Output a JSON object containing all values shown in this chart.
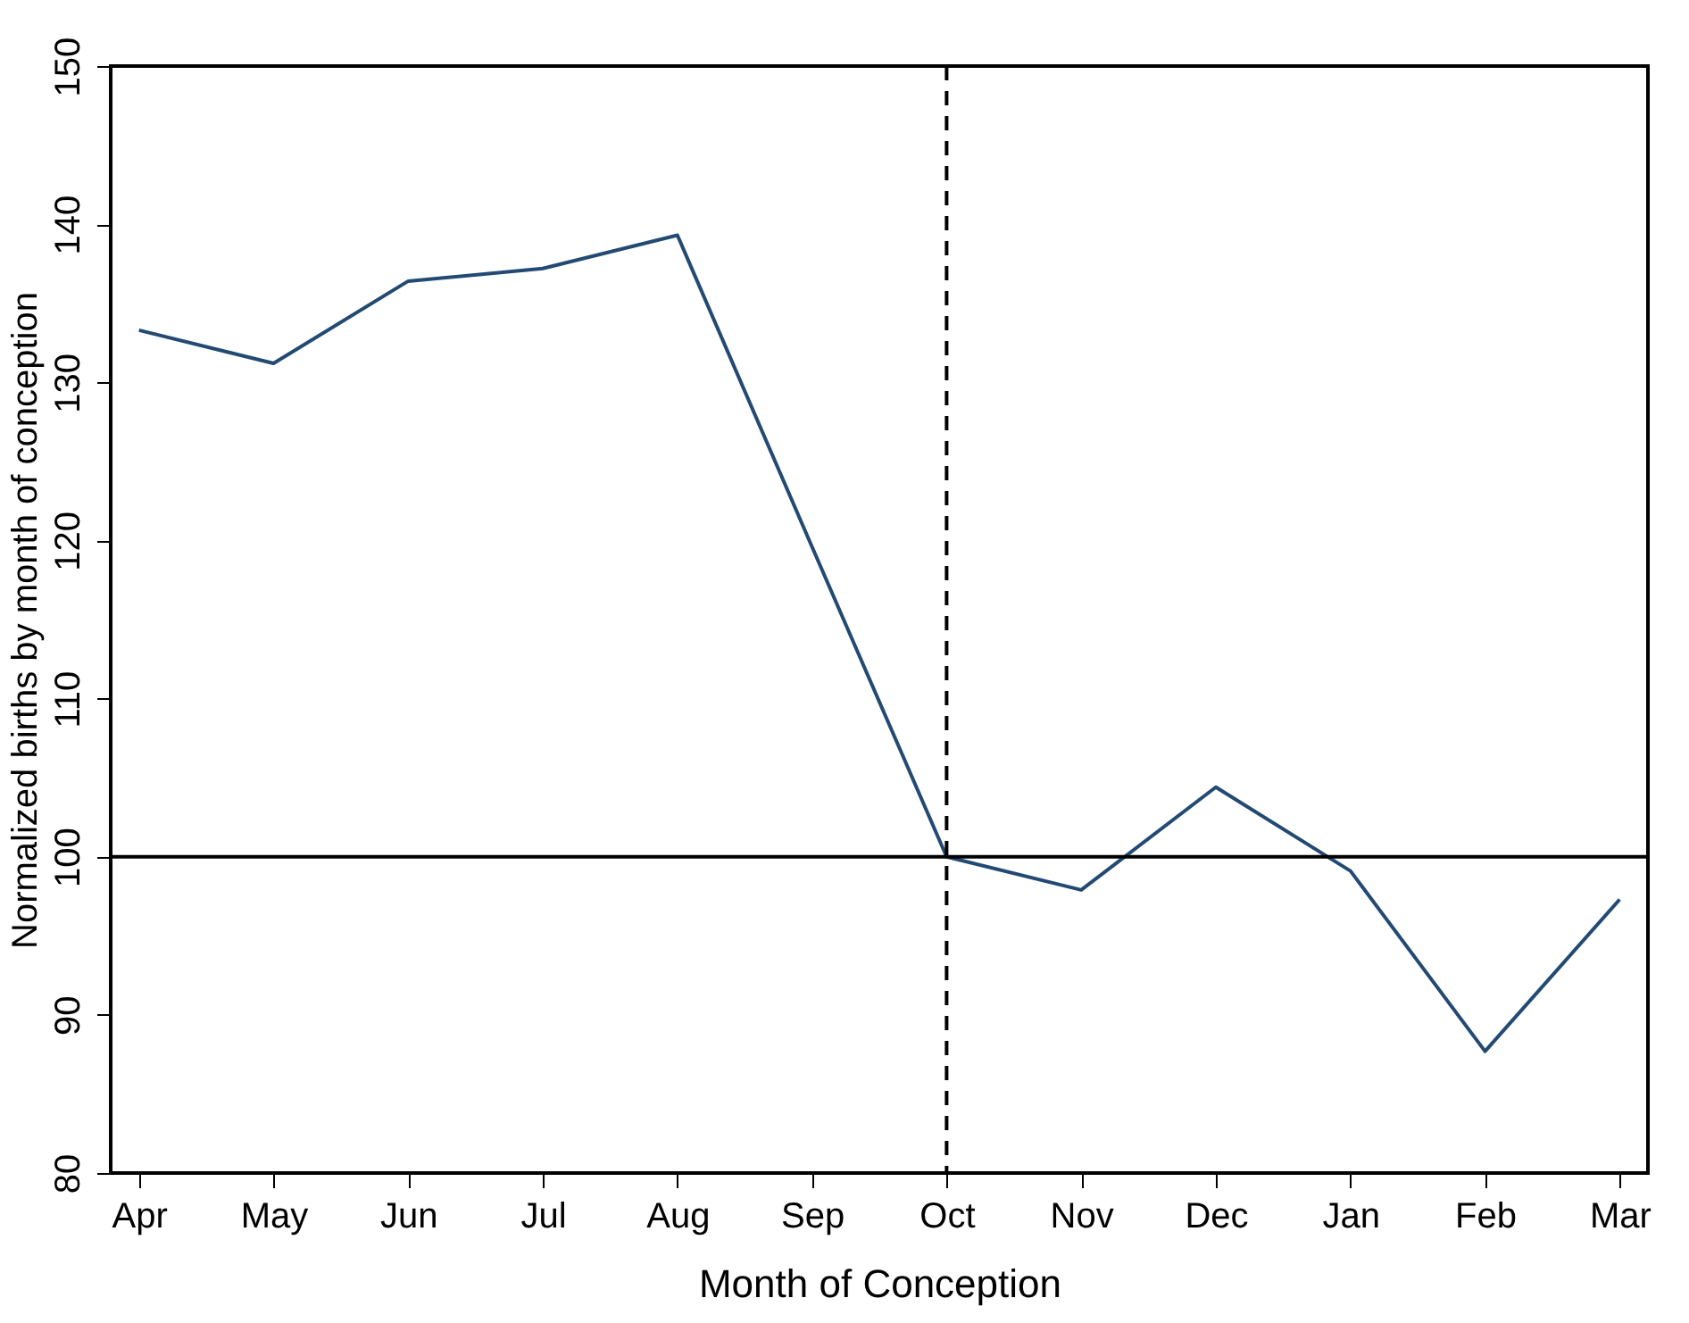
{
  "chart_data": {
    "type": "line",
    "xlabel": "Month of Conception",
    "ylabel": "Normalized births by month of conception",
    "categories": [
      "Apr",
      "May",
      "Jun",
      "Jul",
      "Aug",
      "Sep",
      "Oct",
      "Nov",
      "Dec",
      "Jan",
      "Feb",
      "Mar"
    ],
    "series": [
      {
        "color": "#234a73",
        "values": [
          133.3,
          131.2,
          136.4,
          137.2,
          139.3,
          119.6,
          100,
          97.9,
          104.4,
          99.1,
          87.7,
          97.3
        ]
      }
    ],
    "ylim": [
      80,
      150
    ],
    "yticks": [
      80,
      90,
      100,
      110,
      120,
      130,
      140,
      150
    ],
    "grid": false,
    "marker": "none",
    "line_style": "solid",
    "ref_lines": [
      {
        "axis": "y",
        "value": 100,
        "color": "#000000",
        "line_style": "solid"
      },
      {
        "axis": "x",
        "value": "Oct",
        "color": "#000000",
        "line_style": "dashed"
      }
    ]
  }
}
